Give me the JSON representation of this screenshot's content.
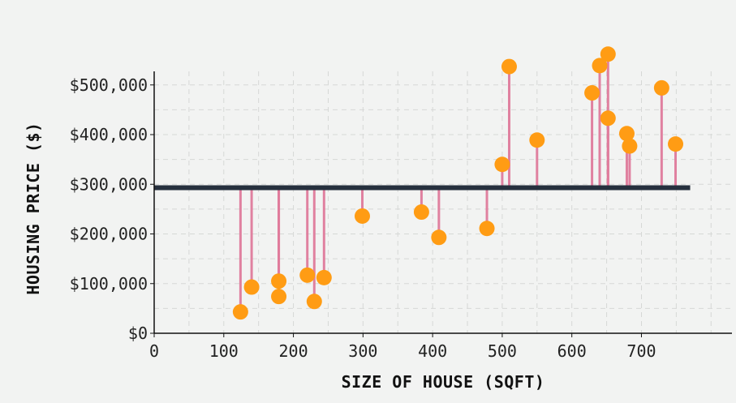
{
  "chart_data": {
    "type": "scatter",
    "title": "",
    "xlabel": "SIZE OF HOUSE (SQFT)",
    "ylabel": "HOUSING PRICE ($)",
    "xlim": [
      0,
      830
    ],
    "ylim": [
      0,
      560000
    ],
    "x_ticks": [
      0,
      100,
      200,
      300,
      400,
      500,
      600,
      700
    ],
    "y_ticks": [
      0,
      100000,
      200000,
      300000,
      400000,
      500000
    ],
    "x_tick_labels": [
      "0",
      "100",
      "200",
      "300",
      "400",
      "500",
      "600",
      "700"
    ],
    "y_tick_labels": [
      "$0",
      "$100,000",
      "$200,000",
      "$300,000",
      "$400,000",
      "$500,000"
    ],
    "grid": true,
    "mean_line": {
      "y": 293000,
      "x_range": [
        0,
        770
      ]
    },
    "colors": {
      "point": "#ff9c14",
      "residual": "#e07b9c",
      "residual_strong": "#d8507a",
      "mean_line": "#26303e",
      "grid": "#d6d8d6",
      "background": "#f2f3f2"
    },
    "points": [
      {
        "x": 124,
        "y": 43000
      },
      {
        "x": 140,
        "y": 93000
      },
      {
        "x": 179,
        "y": 74000
      },
      {
        "x": 179,
        "y": 105000
      },
      {
        "x": 220,
        "y": 117000
      },
      {
        "x": 230,
        "y": 64000
      },
      {
        "x": 244,
        "y": 112000
      },
      {
        "x": 299,
        "y": 236000
      },
      {
        "x": 384,
        "y": 244000
      },
      {
        "x": 409,
        "y": 193000
      },
      {
        "x": 478,
        "y": 211000
      },
      {
        "x": 500,
        "y": 340000
      },
      {
        "x": 510,
        "y": 537000
      },
      {
        "x": 550,
        "y": 389000
      },
      {
        "x": 629,
        "y": 484000
      },
      {
        "x": 640,
        "y": 539000
      },
      {
        "x": 652,
        "y": 562000
      },
      {
        "x": 652,
        "y": 433000
      },
      {
        "x": 679,
        "y": 402000
      },
      {
        "x": 683,
        "y": 377000
      },
      {
        "x": 729,
        "y": 494000
      },
      {
        "x": 749,
        "y": 381000
      }
    ]
  }
}
